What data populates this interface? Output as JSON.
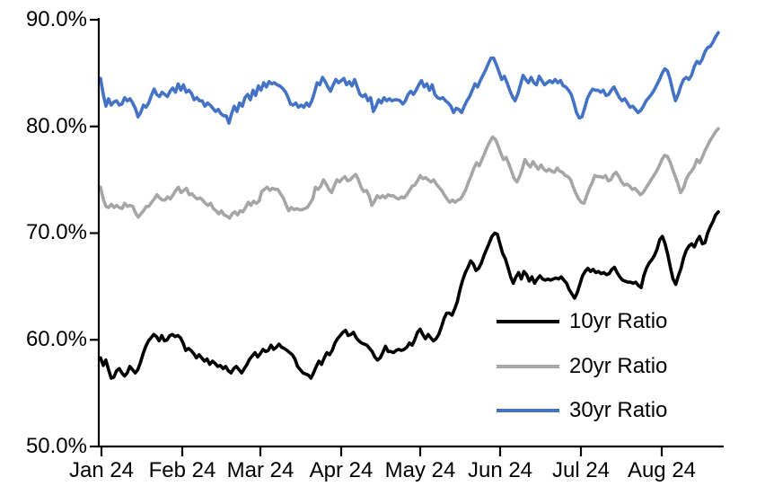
{
  "chart_data": {
    "type": "line",
    "title": "",
    "grid": false,
    "background": "#ffffff",
    "axis_color": "#000000",
    "x_axis": {
      "unit": "month",
      "tick_labels": [
        "Jan 24",
        "Feb 24",
        "Mar 24",
        "Apr 24",
        "May 24",
        "Jun 24",
        "Jul 24",
        "Aug 24"
      ]
    },
    "y_axis": {
      "min": 50,
      "max": 90,
      "tick_step": 10,
      "format": "percent",
      "tick_labels": [
        "90.0%",
        "80.0%",
        "70.0%",
        "60.0%",
        "50.0%"
      ]
    },
    "legend": {
      "position": "inside-lower-right"
    },
    "series": [
      {
        "name": "10yr Ratio",
        "color": "#000000",
        "values": [
          58.3,
          57.6,
          58.1,
          57.2,
          56.4,
          56.5,
          57.1,
          57.3,
          56.9,
          56.6,
          56.9,
          57.5,
          57.2,
          56.9,
          57.2,
          57.9,
          58.7,
          59.4,
          59.9,
          60.2,
          60.5,
          60.3,
          59.9,
          60.4,
          59.9,
          60.0,
          60.4,
          60.5,
          60.3,
          60.4,
          60.2,
          59.7,
          59.0,
          59.2,
          59.0,
          58.7,
          58.3,
          58.6,
          58.3,
          58.0,
          58.2,
          57.7,
          58.0,
          57.8,
          57.5,
          57.6,
          57.3,
          57.5,
          57.1,
          56.9,
          57.3,
          57.5,
          57.2,
          56.9,
          57.3,
          57.7,
          58.2,
          58.5,
          58.8,
          58.4,
          58.7,
          59.1,
          58.9,
          59.0,
          59.5,
          59.1,
          59.3,
          59.6,
          59.3,
          59.2,
          59.0,
          58.8,
          58.6,
          58.2,
          57.5,
          57.2,
          56.9,
          56.8,
          56.7,
          56.4,
          56.9,
          57.5,
          58.0,
          57.7,
          58.3,
          58.8,
          58.6,
          59.0,
          59.7,
          60.1,
          60.4,
          60.7,
          60.9,
          60.4,
          60.5,
          60.7,
          60.2,
          59.9,
          59.7,
          59.6,
          59.5,
          59.2,
          58.9,
          58.4,
          58.1,
          58.3,
          58.8,
          59.4,
          58.9,
          58.9,
          58.8,
          59.0,
          59.1,
          59.0,
          59.1,
          59.3,
          59.7,
          59.5,
          60.0,
          60.7,
          61.0,
          60.5,
          60.1,
          60.5,
          60.2,
          59.9,
          60.1,
          60.5,
          61.2,
          62.0,
          62.5,
          62.5,
          62.3,
          62.9,
          63.6,
          64.7,
          65.6,
          66.3,
          66.8,
          67.4,
          67.1,
          66.5,
          66.7,
          67.2,
          67.9,
          68.5,
          69.1,
          69.7,
          70.0,
          69.9,
          69.0,
          68.1,
          67.6,
          66.8,
          65.9,
          65.3,
          65.9,
          66.3,
          65.7,
          66.4,
          66.1,
          65.5,
          65.9,
          65.3,
          65.7,
          66.0,
          65.7,
          65.6,
          65.7,
          65.6,
          65.7,
          65.8,
          65.7,
          65.9,
          65.6,
          65.3,
          64.7,
          64.3,
          63.9,
          64.4,
          65.2,
          66.0,
          66.4,
          66.7,
          66.4,
          66.6,
          66.3,
          66.4,
          66.2,
          66.3,
          66.1,
          66.2,
          66.6,
          66.8,
          66.3,
          65.9,
          65.6,
          65.5,
          65.4,
          65.4,
          65.3,
          65.4,
          65.1,
          64.9,
          66.0,
          66.7,
          67.2,
          67.5,
          67.9,
          68.5,
          69.4,
          69.7,
          69.0,
          68.0,
          66.8,
          65.7,
          65.2,
          66.0,
          66.7,
          67.7,
          68.4,
          68.8,
          69.0,
          68.7,
          69.3,
          69.7,
          69.0,
          69.1,
          70.0,
          70.6,
          71.1,
          71.7,
          72.0
        ]
      },
      {
        "name": "20yr Ratio",
        "color": "#A6A6A6",
        "values": [
          74.3,
          73.2,
          72.5,
          72.4,
          72.7,
          72.4,
          72.6,
          72.4,
          72.3,
          72.8,
          72.5,
          72.6,
          72.5,
          71.9,
          71.5,
          71.8,
          72.1,
          72.5,
          72.5,
          72.9,
          73.2,
          73.6,
          73.3,
          73.1,
          73.1,
          73.4,
          73.2,
          73.6,
          74.0,
          74.3,
          73.8,
          74.0,
          74.2,
          73.6,
          73.7,
          73.4,
          73.2,
          73.3,
          73.1,
          72.8,
          72.6,
          72.8,
          72.3,
          72.1,
          71.8,
          72.1,
          71.7,
          71.6,
          71.4,
          71.8,
          72.0,
          71.7,
          72.1,
          72.0,
          72.4,
          72.9,
          72.6,
          73.0,
          72.8,
          73.0,
          73.9,
          74.1,
          74.3,
          74.0,
          74.2,
          74.1,
          74.1,
          73.7,
          73.3,
          72.7,
          72.1,
          72.4,
          72.2,
          72.3,
          72.2,
          72.2,
          72.3,
          72.4,
          72.8,
          73.2,
          74.3,
          74.1,
          74.4,
          75.0,
          74.6,
          74.1,
          73.8,
          74.4,
          75.0,
          74.8,
          75.1,
          75.3,
          74.9,
          75.0,
          75.3,
          75.5,
          75.0,
          74.3,
          73.9,
          74.0,
          73.5,
          72.6,
          73.0,
          73.5,
          73.3,
          73.5,
          73.3,
          73.6,
          73.5,
          73.5,
          73.3,
          73.2,
          73.4,
          73.3,
          73.6,
          74.0,
          74.4,
          74.5,
          74.9,
          75.4,
          75.1,
          75.2,
          75.0,
          74.8,
          75.0,
          74.6,
          74.3,
          74.0,
          73.6,
          73.2,
          72.9,
          73.1,
          72.9,
          73.1,
          73.2,
          73.6,
          74.1,
          74.8,
          75.4,
          76.1,
          76.6,
          76.3,
          76.9,
          77.5,
          78.1,
          78.6,
          79.0,
          78.8,
          78.2,
          77.5,
          76.9,
          77.1,
          76.5,
          75.8,
          75.1,
          74.8,
          75.3,
          76.0,
          76.9,
          76.5,
          76.2,
          76.7,
          76.3,
          76.0,
          76.4,
          76.0,
          75.8,
          76.0,
          75.8,
          75.7,
          76.1,
          75.8,
          75.7,
          75.4,
          75.3,
          75.0,
          74.3,
          73.7,
          73.2,
          72.9,
          72.8,
          73.5,
          74.2,
          74.7,
          75.4,
          75.3,
          75.3,
          75.2,
          75.4,
          74.9,
          75.0,
          75.5,
          75.7,
          75.3,
          74.8,
          74.5,
          74.6,
          74.4,
          74.1,
          74.2,
          73.9,
          73.6,
          73.8,
          74.2,
          74.6,
          75.0,
          75.4,
          75.8,
          76.3,
          76.9,
          77.3,
          77.2,
          76.7,
          76.0,
          75.3,
          74.6,
          73.8,
          74.2,
          75.0,
          75.5,
          75.8,
          76.2,
          76.9,
          76.6,
          77.1,
          77.7,
          78.2,
          78.7,
          79.1,
          79.5,
          79.8
        ]
      },
      {
        "name": "30yr Ratio",
        "color": "#4472C4",
        "values": [
          84.5,
          83.0,
          81.9,
          82.6,
          82.0,
          82.3,
          82.4,
          82.0,
          82.1,
          82.7,
          82.4,
          82.6,
          82.2,
          81.7,
          80.9,
          81.3,
          82.0,
          81.8,
          82.2,
          82.9,
          83.5,
          83.0,
          82.8,
          83.2,
          83.0,
          82.8,
          83.3,
          83.6,
          83.2,
          84.0,
          83.4,
          83.9,
          83.2,
          83.4,
          83.1,
          82.5,
          82.7,
          82.4,
          82.4,
          81.9,
          82.2,
          82.0,
          81.7,
          81.4,
          81.6,
          81.2,
          81.0,
          81.0,
          80.3,
          81.2,
          81.9,
          81.4,
          82.2,
          81.9,
          82.7,
          83.0,
          82.5,
          83.4,
          82.9,
          83.8,
          83.4,
          84.1,
          83.7,
          84.2,
          84.0,
          84.1,
          83.9,
          83.8,
          83.6,
          83.3,
          82.8,
          82.1,
          82.0,
          82.2,
          81.8,
          82.0,
          81.8,
          82.2,
          81.9,
          82.4,
          83.2,
          84.1,
          83.9,
          84.6,
          84.2,
          83.7,
          83.3,
          83.9,
          84.4,
          84.1,
          84.3,
          84.5,
          83.9,
          84.2,
          83.8,
          84.4,
          83.7,
          83.0,
          82.8,
          83.0,
          82.4,
          82.7,
          81.4,
          81.9,
          82.5,
          82.2,
          82.7,
          82.4,
          82.6,
          82.4,
          82.5,
          82.5,
          82.4,
          82.1,
          82.4,
          83.0,
          83.3,
          83.0,
          83.4,
          83.9,
          84.3,
          83.7,
          84.0,
          83.4,
          83.9,
          83.0,
          82.7,
          82.6,
          82.7,
          82.4,
          82.2,
          81.9,
          81.3,
          81.7,
          81.6,
          81.3,
          81.9,
          82.4,
          82.8,
          83.4,
          84.0,
          83.7,
          84.3,
          84.8,
          85.3,
          85.9,
          86.4,
          86.4,
          85.8,
          85.1,
          84.4,
          84.7,
          84.1,
          83.4,
          82.8,
          82.4,
          83.0,
          83.9,
          84.8,
          84.4,
          84.1,
          84.6,
          84.1,
          83.9,
          84.7,
          84.3,
          83.9,
          84.1,
          84.3,
          84.1,
          84.4,
          84.1,
          84.3,
          83.8,
          83.7,
          83.4,
          83.0,
          82.2,
          81.3,
          80.8,
          80.9,
          81.7,
          82.6,
          83.1,
          83.5,
          83.4,
          83.4,
          83.2,
          83.4,
          82.9,
          83.0,
          83.4,
          83.7,
          83.2,
          82.7,
          82.4,
          82.6,
          82.2,
          81.8,
          81.9,
          81.6,
          81.3,
          81.5,
          81.9,
          82.4,
          82.7,
          83.0,
          83.4,
          83.9,
          84.4,
          85.0,
          85.4,
          85.2,
          84.4,
          83.3,
          82.4,
          83.0,
          83.8,
          84.4,
          84.6,
          84.4,
          84.8,
          85.6,
          86.1,
          85.9,
          86.3,
          87.0,
          87.4,
          87.5,
          87.9,
          88.4,
          88.8
        ]
      }
    ]
  }
}
